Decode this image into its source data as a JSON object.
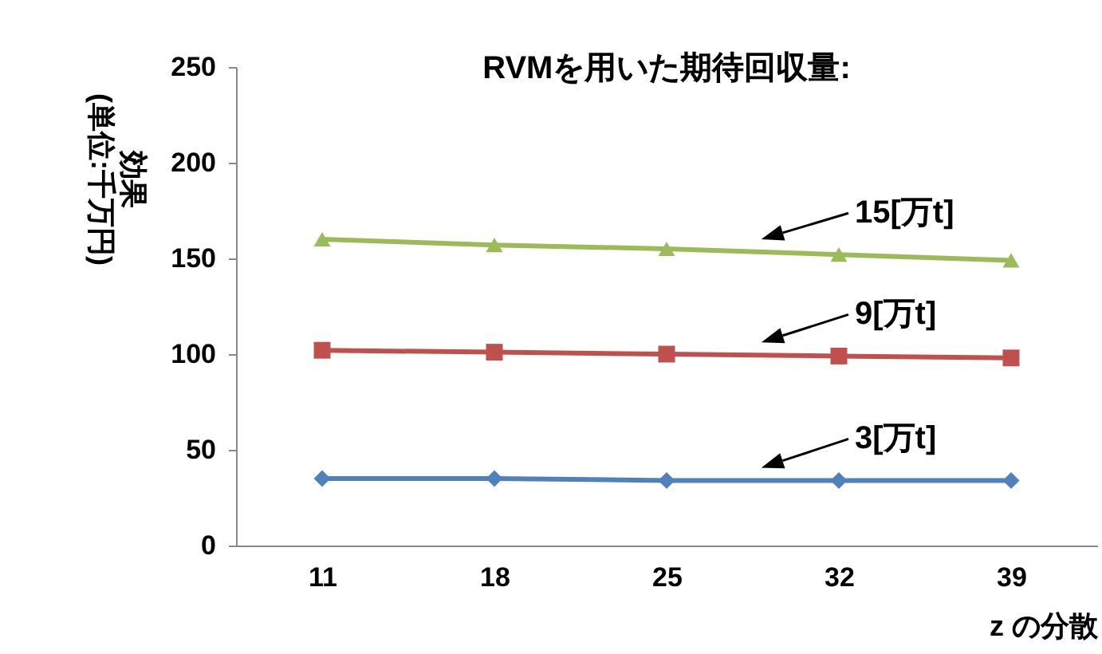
{
  "chart_data": {
    "type": "line",
    "title": "RVMを用いた期待回収量:",
    "xlabel": "z の分散",
    "ylabel": "効果\n(単位:千万円)",
    "categories": [
      "11",
      "18",
      "25",
      "32",
      "39"
    ],
    "ylim": [
      0,
      250
    ],
    "yticks": [
      0,
      50,
      100,
      150,
      200,
      250
    ],
    "line_style": "solid",
    "series": [
      {
        "name": "15[万t]",
        "color": "#9bbb59",
        "marker": "triangle",
        "values": [
          160,
          157,
          155,
          152,
          149
        ]
      },
      {
        "name": "9[万t]",
        "color": "#c0504d",
        "marker": "square",
        "values": [
          102,
          101,
          100,
          99,
          98
        ]
      },
      {
        "name": "3[万t]",
        "color": "#4f81bd",
        "marker": "diamond",
        "values": [
          35,
          35,
          34,
          34,
          34
        ]
      }
    ]
  }
}
